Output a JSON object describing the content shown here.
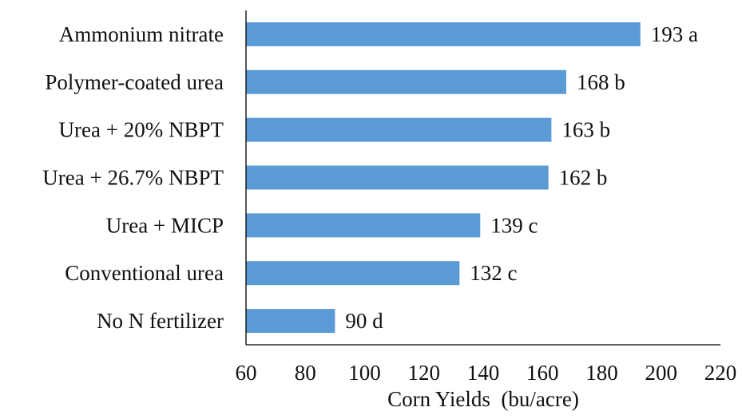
{
  "chart_data": {
    "type": "bar",
    "orientation": "horizontal",
    "categories": [
      "Ammonium nitrate",
      "Polymer-coated urea",
      "Urea + 20% NBPT",
      "Urea + 26.7% NBPT",
      "Urea + MICP",
      "Conventional urea",
      "No N fertilizer"
    ],
    "values": [
      193,
      168,
      163,
      162,
      139,
      132,
      90
    ],
    "data_labels": [
      "193 a",
      "168 b",
      "163 b",
      "162 b",
      "139 c",
      "132 c",
      "90 d"
    ],
    "xlabel": "Corn Yields  (bu/acre)",
    "ylabel": "",
    "title": "",
    "xlim": [
      60,
      220
    ],
    "xticks": [
      60,
      80,
      100,
      120,
      140,
      160,
      180,
      200,
      220
    ],
    "tick_labels": [
      "60",
      "80",
      "100",
      "120",
      "140",
      "160",
      "180",
      "200",
      "220"
    ],
    "grid": false,
    "legend": "none",
    "bar_color": "#5b9bd5",
    "axis_color": "#000000"
  }
}
